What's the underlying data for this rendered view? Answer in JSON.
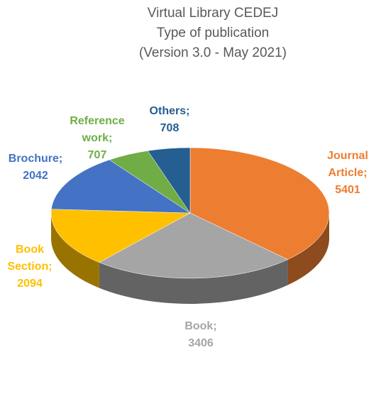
{
  "chart_data": {
    "type": "pie3d",
    "title": "Virtual Library CEDEJ",
    "subtitle": [
      "Type of publication",
      "(Version 3.0 - May 2021)"
    ],
    "categories": [
      "Journal Article",
      "Book",
      "Book Section",
      "Brochure",
      "Reference work",
      "Others"
    ],
    "values": [
      5401,
      3406,
      2094,
      2042,
      707,
      708
    ],
    "colors": [
      "#ed7d31",
      "#a5a5a5",
      "#ffc000",
      "#4472c4",
      "#70ad47",
      "#255e91"
    ],
    "label_separator": ";"
  }
}
